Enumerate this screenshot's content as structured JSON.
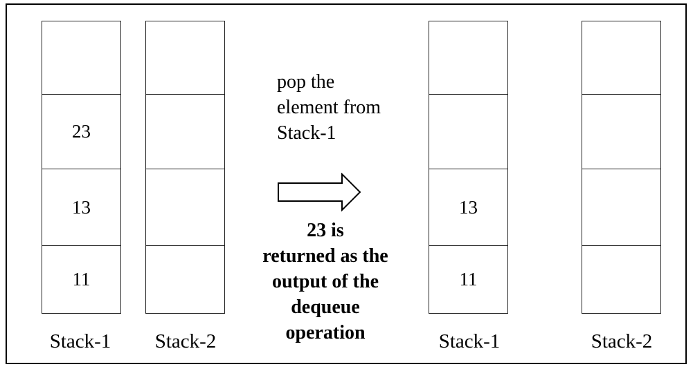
{
  "before": {
    "stack1": {
      "label": "Stack-1",
      "cells": [
        "",
        "23",
        "13",
        "11"
      ]
    },
    "stack2": {
      "label": "Stack-2",
      "cells": [
        "",
        "",
        "",
        ""
      ]
    }
  },
  "after": {
    "stack1": {
      "label": "Stack-1",
      "cells": [
        "",
        "",
        "13",
        "11"
      ]
    },
    "stack2": {
      "label": "Stack-2",
      "cells": [
        "",
        "",
        "",
        ""
      ]
    }
  },
  "step_note": [
    "pop the",
    "element from",
    "Stack-1"
  ],
  "result_text": [
    "23 is",
    "returned as the",
    "output of the",
    "dequeue",
    "operation"
  ]
}
